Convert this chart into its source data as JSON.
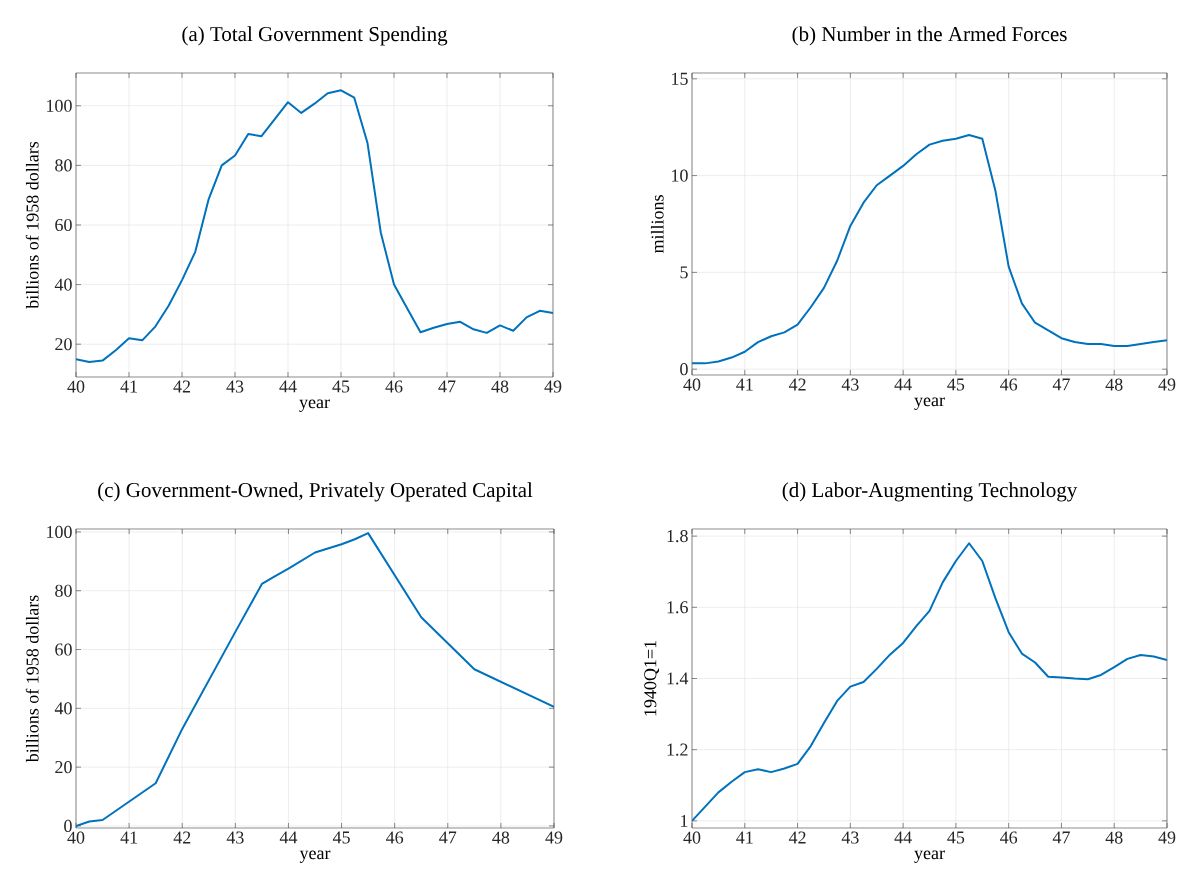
{
  "chart_data": [
    {
      "type": "line",
      "title": "(a) Total Government Spending",
      "xlabel": "year",
      "ylabel": "billions of 1958 dollars",
      "grid": true,
      "xlim": [
        40,
        49
      ],
      "xticks": [
        40,
        41,
        42,
        43,
        44,
        45,
        46,
        47,
        48,
        49
      ],
      "ylim": [
        9,
        111
      ],
      "yticks": [
        20,
        40,
        60,
        80,
        100
      ],
      "x": [
        40,
        40.25,
        40.5,
        40.75,
        41,
        41.25,
        41.5,
        41.75,
        42,
        42.25,
        42.5,
        42.75,
        43,
        43.25,
        43.5,
        43.75,
        44,
        44.25,
        44.5,
        44.75,
        45,
        45.25,
        45.5,
        45.75,
        46,
        46.25,
        46.5,
        46.75,
        47,
        47.25,
        47.5,
        47.75,
        48,
        48.25,
        48.5,
        48.75,
        49
      ],
      "color": "#0072bd",
      "values": [
        15,
        14,
        14.5,
        18,
        22,
        21.3,
        26,
        33,
        41.5,
        51,
        68.5,
        80,
        83.3,
        90.5,
        89.8,
        95.5,
        101.2,
        97.6,
        100.7,
        104.2,
        105.2,
        102.7,
        87.5,
        57.5,
        40,
        32,
        24,
        25.5,
        26.8,
        27.5,
        25,
        23.8,
        26.3,
        24.5,
        29,
        31.2,
        30.5
      ]
    },
    {
      "type": "line",
      "title": "(b) Number in the Armed Forces",
      "xlabel": "year",
      "ylabel": "millions",
      "grid": true,
      "xlim": [
        40,
        49
      ],
      "xticks": [
        40,
        41,
        42,
        43,
        44,
        45,
        46,
        47,
        48,
        49
      ],
      "ylim": [
        -0.3,
        15.3
      ],
      "yticks": [
        0,
        5,
        10,
        15
      ],
      "x": [
        40,
        40.25,
        40.5,
        40.75,
        41,
        41.25,
        41.5,
        41.75,
        42,
        42.25,
        42.5,
        42.75,
        43,
        43.25,
        43.5,
        43.75,
        44,
        44.25,
        44.5,
        44.75,
        45,
        45.25,
        45.5,
        45.75,
        46,
        46.25,
        46.5,
        46.75,
        47,
        47.25,
        47.5,
        47.75,
        48,
        48.25,
        48.5,
        48.75,
        49
      ],
      "color": "#0072bd",
      "values": [
        0.3,
        0.3,
        0.4,
        0.6,
        0.9,
        1.4,
        1.7,
        1.9,
        2.3,
        3.2,
        4.2,
        5.6,
        7.4,
        8.6,
        9.5,
        10.0,
        10.5,
        11.1,
        11.6,
        11.8,
        11.9,
        12.1,
        11.9,
        9.2,
        5.3,
        3.4,
        2.4,
        2.0,
        1.6,
        1.4,
        1.3,
        1.3,
        1.2,
        1.2,
        1.3,
        1.4,
        1.5
      ]
    },
    {
      "type": "line",
      "title": "(c) Government-Owned, Privately Operated Capital",
      "xlabel": "year",
      "ylabel": "billions of 1958 dollars",
      "grid": true,
      "xlim": [
        40,
        49
      ],
      "xticks": [
        40,
        41,
        42,
        43,
        44,
        45,
        46,
        47,
        48,
        49
      ],
      "ylim": [
        -0.7,
        101
      ],
      "yticks": [
        0,
        20,
        40,
        60,
        80,
        100
      ],
      "x": [
        40,
        40.25,
        40.5,
        41.5,
        42,
        43,
        43.5,
        43.75,
        44,
        44.5,
        45,
        45.25,
        45.5,
        46.5,
        47.5,
        49
      ],
      "color": "#0072bd",
      "values": [
        0,
        1.5,
        2,
        14.5,
        33,
        66,
        82.3,
        85,
        87.5,
        93,
        95.8,
        97.5,
        99.6,
        71,
        53.3,
        40.5
      ]
    },
    {
      "type": "line",
      "title": "(d) Labor-Augmenting Technology",
      "xlabel": "year",
      "ylabel": "1940Q1=1",
      "grid": true,
      "xlim": [
        40,
        49
      ],
      "xticks": [
        40,
        41,
        42,
        43,
        44,
        45,
        46,
        47,
        48,
        49
      ],
      "ylim": [
        0.98,
        1.82
      ],
      "yticks": [
        1,
        1.2,
        1.4,
        1.6,
        1.8
      ],
      "x": [
        40,
        40.25,
        40.5,
        40.75,
        41,
        41.25,
        41.5,
        41.75,
        42,
        42.25,
        42.5,
        42.75,
        43,
        43.25,
        43.5,
        43.75,
        44,
        44.25,
        44.5,
        44.75,
        45,
        45.25,
        45.5,
        45.75,
        46,
        46.25,
        46.5,
        46.75,
        47,
        47.25,
        47.5,
        47.75,
        48,
        48.25,
        48.5,
        48.75,
        49
      ],
      "color": "#0072bd",
      "values": [
        1.0,
        1.04,
        1.08,
        1.11,
        1.137,
        1.145,
        1.137,
        1.147,
        1.16,
        1.21,
        1.275,
        1.337,
        1.377,
        1.39,
        1.427,
        1.467,
        1.5,
        1.547,
        1.59,
        1.67,
        1.73,
        1.78,
        1.73,
        1.625,
        1.53,
        1.47,
        1.445,
        1.405,
        1.403,
        1.4,
        1.398,
        1.41,
        1.432,
        1.455,
        1.466,
        1.462,
        1.452
      ]
    }
  ]
}
